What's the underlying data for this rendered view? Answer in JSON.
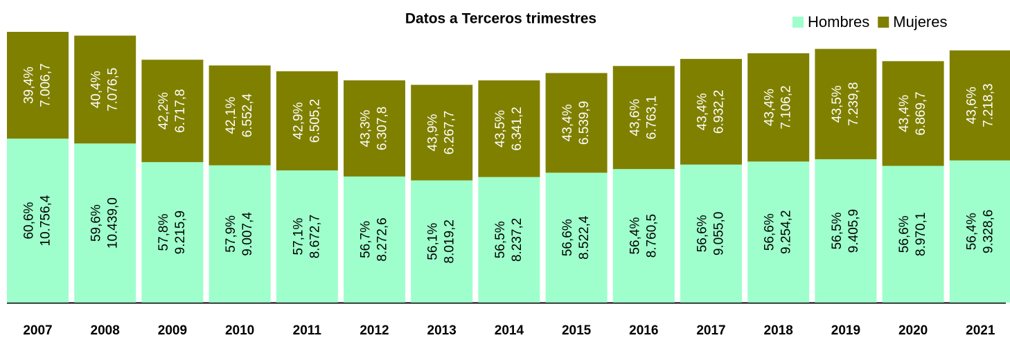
{
  "chart_data": {
    "type": "stacked_bar",
    "title": "Datos a Terceros trimestres",
    "categories": [
      "2007",
      "2008",
      "2009",
      "2010",
      "2011",
      "2012",
      "2013",
      "2014",
      "2015",
      "2016",
      "2017",
      "2018",
      "2019",
      "2020",
      "2021"
    ],
    "legend": "top-right",
    "series": [
      {
        "name": "Hombres",
        "color": "#9effcc",
        "label_color": "#000000",
        "values": [
          10756.4,
          10439.0,
          9215.9,
          9007.4,
          8672.7,
          8272.6,
          8019.2,
          8237.2,
          8522.4,
          8760.5,
          9055.0,
          9254.2,
          9405.9,
          8970.1,
          9328.6
        ],
        "value_labels": [
          "10.756,4",
          "10.439,0",
          "9.215,9",
          "9.007,4",
          "8.672,7",
          "8.272,6",
          "8.019,2",
          "8.237,2",
          "8.522,4",
          "8.760,5",
          "9.055,0",
          "9.254,2",
          "9.405,9",
          "8.970,1",
          "9.328,6"
        ],
        "share_labels": [
          "60,6%",
          "59,6%",
          "57,8%",
          "57,9%",
          "57,1%",
          "56,7%",
          "56,1%",
          "56,5%",
          "56,6%",
          "56,4%",
          "56,6%",
          "56,6%",
          "56,5%",
          "56,6%",
          "56,4%"
        ]
      },
      {
        "name": "Mujeres",
        "color": "#808000",
        "label_color": "#ffffff",
        "values": [
          7006.7,
          7076.5,
          6717.8,
          6552.4,
          6505.2,
          6307.8,
          6267.7,
          6341.2,
          6539.9,
          6763.1,
          6932.2,
          7106.2,
          7239.8,
          6869.7,
          7218.3
        ],
        "value_labels": [
          "7.006,7",
          "7.076,5",
          "6.717,8",
          "6.552,4",
          "6.505,2",
          "6.307,8",
          "6.267,7",
          "6.341,2",
          "6.539,9",
          "6.763,1",
          "6.932,2",
          "7.106,2",
          "7.239,8",
          "6.869,7",
          "7.218,3"
        ],
        "share_labels": [
          "39,4%",
          "40,4%",
          "42,2%",
          "42,1%",
          "42,9%",
          "43,3%",
          "43,9%",
          "43,5%",
          "43,4%",
          "43,6%",
          "43,4%",
          "43,4%",
          "43,5%",
          "43,4%",
          "43,6%"
        ]
      }
    ]
  }
}
